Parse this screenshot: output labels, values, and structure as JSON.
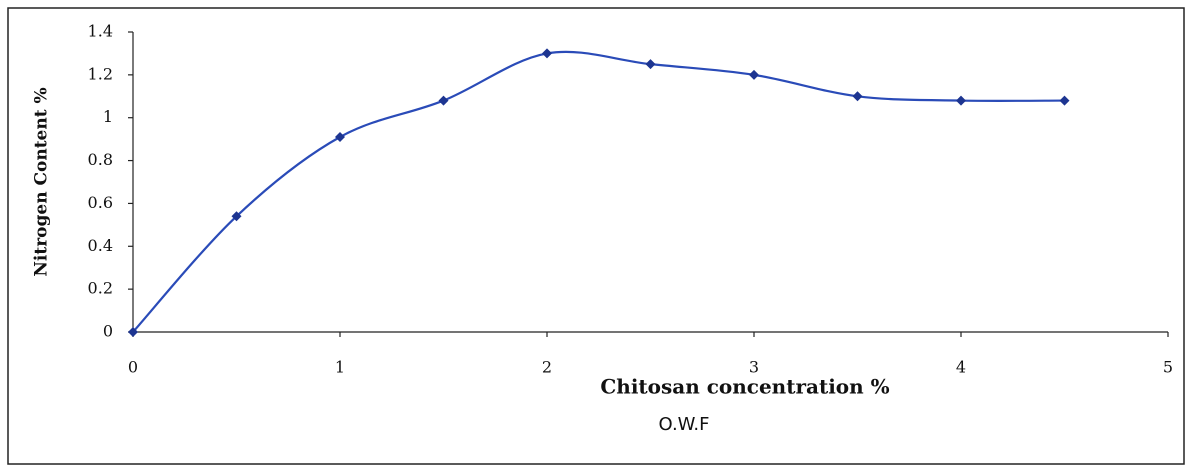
{
  "chart_data": {
    "type": "line",
    "xlabel": "Chitosan concentration %",
    "xlabel_sub": "O.W.F",
    "ylabel": "Nitrogen Content %",
    "x": [
      0,
      0.5,
      1,
      1.5,
      2,
      2.5,
      3,
      3.5,
      4,
      4.5
    ],
    "series": [
      {
        "name": "Nitrogen Content %",
        "color": "#2a4bb8",
        "values": [
          0,
          0.54,
          0.91,
          1.08,
          1.3,
          1.25,
          1.2,
          1.1,
          1.08,
          1.08
        ]
      }
    ],
    "xlim": [
      0,
      5
    ],
    "xticks": [
      0,
      1,
      2,
      3,
      4,
      5
    ],
    "ylim": [
      0,
      1.4
    ],
    "yticks": [
      0,
      0.2,
      0.4,
      0.6,
      0.8,
      1,
      1.2,
      1.4
    ],
    "grid": false,
    "smooth": true
  }
}
